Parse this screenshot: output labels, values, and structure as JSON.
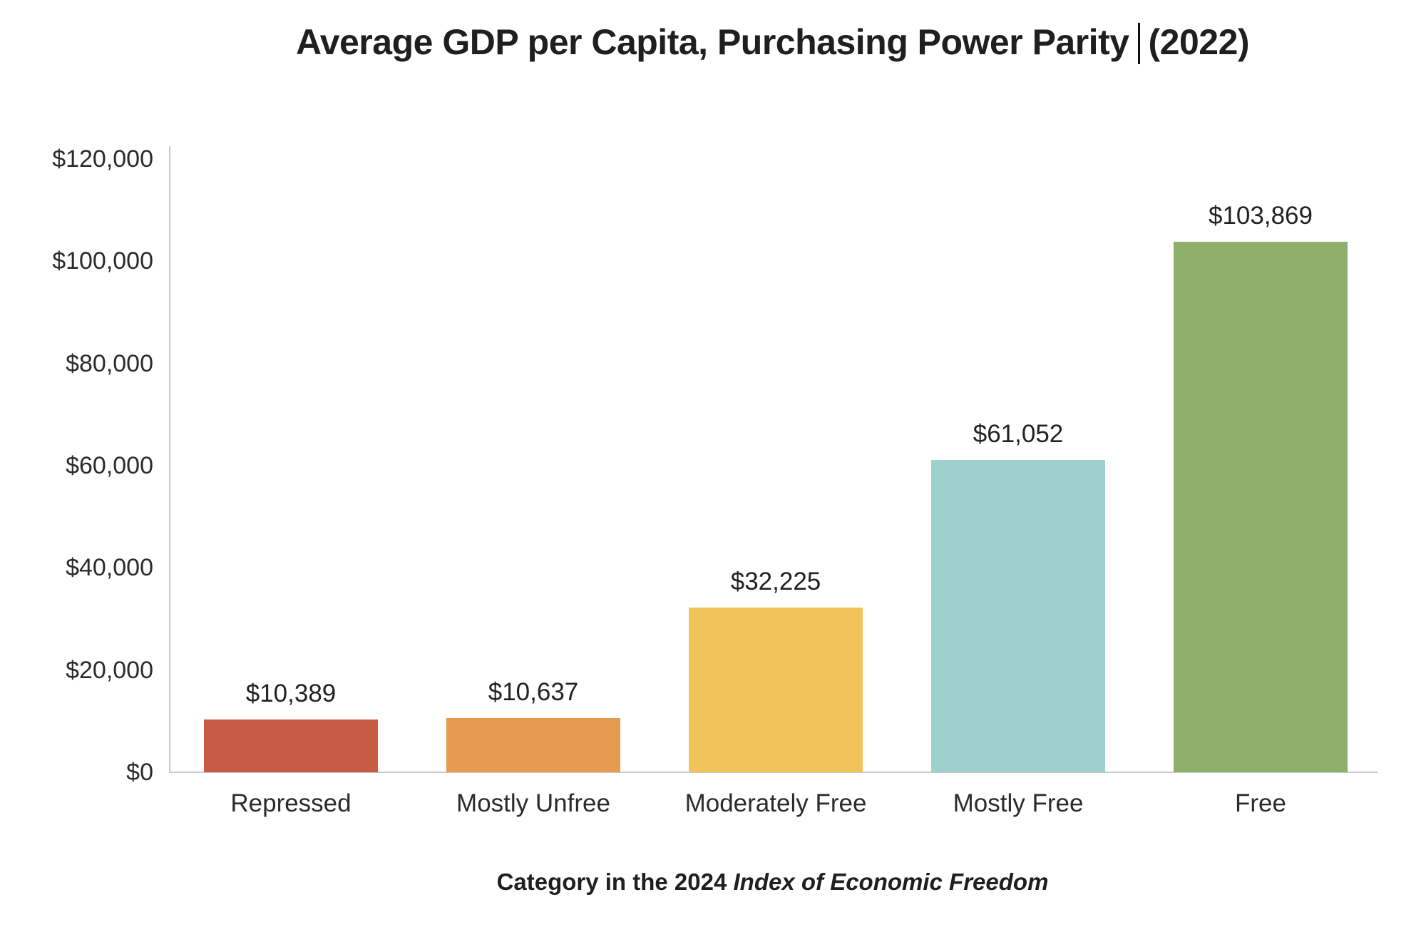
{
  "title": {
    "part_before_cursor": "Average GDP per Capita, Purchasing Power Parity",
    "part_after_cursor": "(2022)"
  },
  "caption": {
    "normal": "Category in the 2024 ",
    "italic": "Index of Economic Freedom"
  },
  "chart_data": {
    "type": "bar",
    "title": "Average GDP per Capita, Purchasing Power Parity (2022)",
    "categories": [
      "Repressed",
      "Mostly Unfree",
      "Moderately Free",
      "Mostly Free",
      "Free"
    ],
    "values": [
      10389,
      10637,
      32225,
      61052,
      103869
    ],
    "value_labels": [
      "$10,389",
      "$10,637",
      "$32,225",
      "$61,052",
      "$103,869"
    ],
    "bar_colors": [
      "#C75A43",
      "#E59A4D",
      "#F0C45B",
      "#9ED1CD",
      "#8FB06A"
    ],
    "xlabel": "Category in the 2024 Index of Economic Freedom",
    "ylabel": "",
    "ylim": [
      0,
      120000
    ],
    "yticks": [
      0,
      20000,
      40000,
      60000,
      80000,
      100000,
      120000
    ],
    "ytick_labels": [
      "$0",
      "$20,000",
      "$40,000",
      "$60,000",
      "$80,000",
      "$100,000",
      "$120,000"
    ],
    "grid": false,
    "legend": false,
    "colors": {
      "axis": "#c9c9c9",
      "text": "#2b2b2b"
    }
  }
}
